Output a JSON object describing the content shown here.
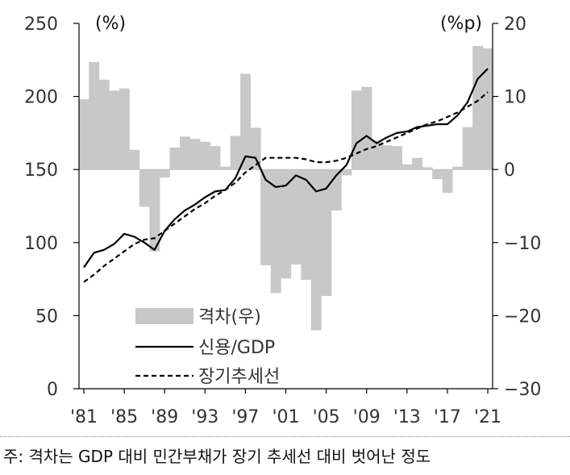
{
  "chart_data": {
    "type": "bar+line",
    "title": "",
    "left_axis": {
      "unit_label": "(%)",
      "ylim": [
        0,
        250
      ],
      "ticks": [
        0,
        50,
        100,
        150,
        200,
        250
      ]
    },
    "right_axis": {
      "unit_label": "(%p)",
      "ylim": [
        -30,
        20
      ],
      "ticks": [
        -30,
        -20,
        -10,
        0,
        10,
        20
      ],
      "tick_labels": [
        "−30",
        "−20",
        "−10",
        "0",
        "10",
        "20"
      ]
    },
    "x": {
      "start_year": 1981,
      "end_year": 2021,
      "tick_labels": [
        "'81",
        "'85",
        "'89",
        "'93",
        "'97",
        "'01",
        "'05",
        "'09",
        "'13",
        "'17",
        "'21"
      ],
      "tick_years": [
        1981,
        1985,
        1989,
        1993,
        1997,
        2001,
        2005,
        2009,
        2013,
        2017,
        2021
      ]
    },
    "series": [
      {
        "name": "격차(우)",
        "type": "bar",
        "axis": "right",
        "color": "#c8c8c8",
        "years": [
          1981,
          1982,
          1983,
          1984,
          1985,
          1986,
          1987,
          1988,
          1989,
          1990,
          1991,
          1992,
          1993,
          1994,
          1995,
          1996,
          1997,
          1998,
          1999,
          2000,
          2001,
          2002,
          2003,
          2004,
          2005,
          2006,
          2007,
          2008,
          2009,
          2010,
          2011,
          2012,
          2013,
          2014,
          2015,
          2016,
          2017,
          2018,
          2019,
          2020,
          2021
        ],
        "values": [
          9.6,
          14.7,
          12.3,
          10.8,
          11.1,
          2.7,
          -5.1,
          -11.2,
          -1.1,
          3.0,
          4.5,
          4.2,
          3.8,
          3.2,
          0.4,
          4.6,
          13.1,
          5.7,
          -13.1,
          -16.9,
          -14.9,
          -13.0,
          -15.1,
          -22.0,
          -17.3,
          -5.6,
          -0.8,
          10.8,
          11.3,
          4.0,
          3.3,
          3.2,
          0.7,
          1.6,
          0.3,
          -1.3,
          -3.2,
          0.4,
          5.8,
          16.9,
          16.6
        ]
      },
      {
        "name": "신용/GDP",
        "type": "line",
        "axis": "left",
        "color": "#000000",
        "style": "solid",
        "years": [
          1981,
          1982,
          1983,
          1984,
          1985,
          1986,
          1987,
          1988,
          1989,
          1990,
          1991,
          1992,
          1993,
          1994,
          1995,
          1996,
          1997,
          1998,
          1999,
          2000,
          2001,
          2002,
          2003,
          2004,
          2005,
          2006,
          2007,
          2008,
          2009,
          2010,
          2011,
          2012,
          2013,
          2014,
          2015,
          2016,
          2017,
          2018,
          2019,
          2020,
          2021
        ],
        "values": [
          83,
          93,
          95,
          99,
          106,
          104,
          100,
          95,
          108,
          116,
          122,
          126,
          131,
          135,
          136,
          144,
          159,
          158,
          143,
          138,
          139,
          146,
          143,
          135,
          137,
          146,
          153,
          168,
          173,
          168,
          172,
          175,
          176,
          179,
          180,
          181,
          181,
          187,
          196,
          212,
          219
        ]
      },
      {
        "name": "장기추세선",
        "type": "line",
        "axis": "left",
        "color": "#000000",
        "style": "dashed",
        "years": [
          1981,
          1982,
          1983,
          1984,
          1985,
          1986,
          1987,
          1988,
          1989,
          1990,
          1991,
          1992,
          1993,
          1994,
          1995,
          1996,
          1997,
          1998,
          1999,
          2000,
          2001,
          2002,
          2003,
          2004,
          2005,
          2006,
          2007,
          2008,
          2009,
          2010,
          2011,
          2012,
          2013,
          2014,
          2015,
          2016,
          2017,
          2018,
          2019,
          2020,
          2021
        ],
        "values": [
          73,
          78,
          84,
          89,
          94,
          99,
          102,
          103,
          108,
          113,
          118,
          123,
          127,
          132,
          136,
          141,
          148,
          153,
          158,
          158,
          158,
          158,
          157,
          155,
          155,
          156,
          158,
          161,
          164,
          166,
          169,
          172,
          175,
          178,
          181,
          183,
          186,
          189,
          193,
          197,
          203
        ]
      }
    ],
    "legend": {
      "position": "bottom-left",
      "labels": [
        "격차(우)",
        "신용/GDP",
        "장기추세선"
      ]
    }
  },
  "footnote": "주: 격차는 GDP 대비 민간부채가 장기 추세선 대비 벗어난 정도"
}
